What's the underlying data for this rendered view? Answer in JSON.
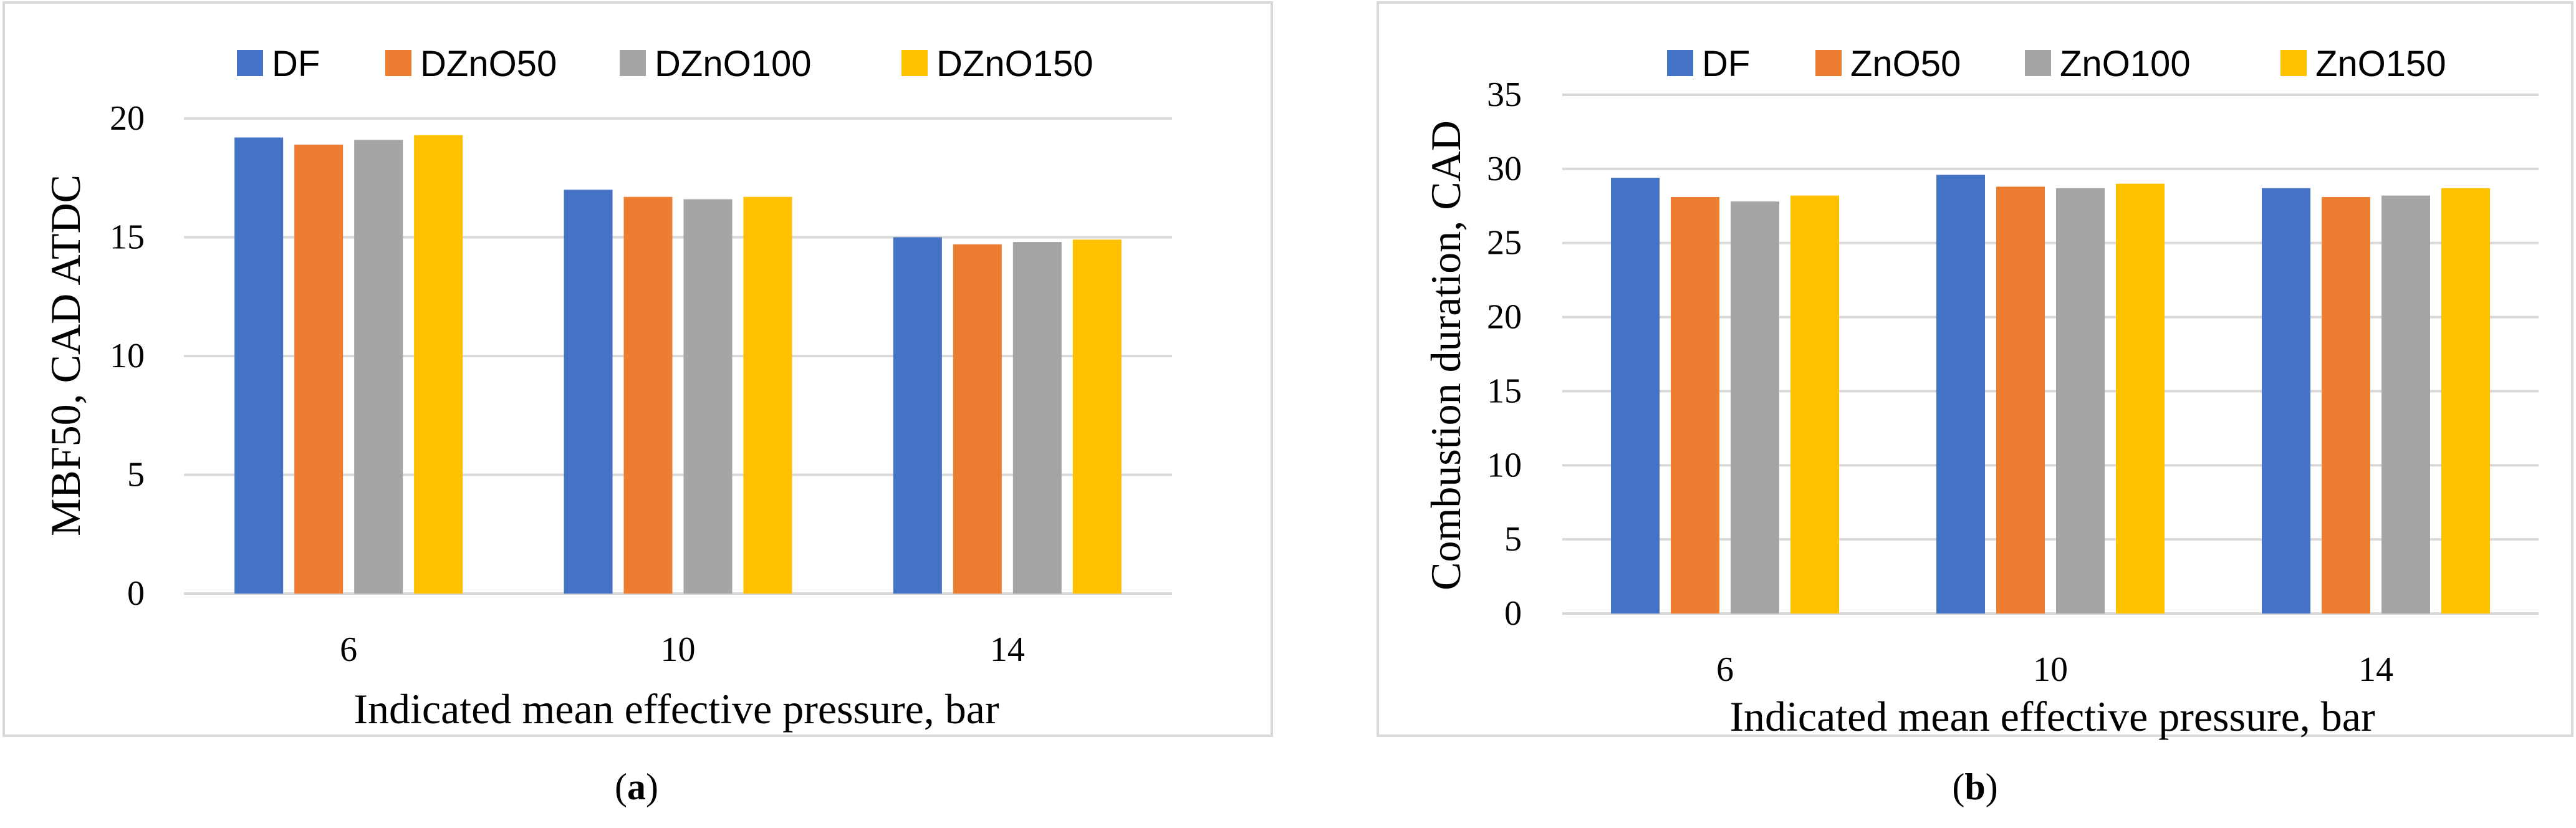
{
  "chart_data": [
    {
      "type": "bar",
      "panel_label": "a",
      "title": "",
      "categories": [
        "6",
        "10",
        "14"
      ],
      "series": [
        {
          "name": "DF",
          "values": [
            19.2,
            17.0,
            15.0
          ]
        },
        {
          "name": "DZnO50",
          "values": [
            18.9,
            16.7,
            14.7
          ]
        },
        {
          "name": "DZnO100",
          "values": [
            19.1,
            16.6,
            14.8
          ]
        },
        {
          "name": "DZnO150",
          "values": [
            19.3,
            16.7,
            14.9
          ]
        }
      ],
      "xlabel": "Indicated mean effective pressure, bar",
      "ylabel": "MBF50, CAD ATDC",
      "ylim": [
        0,
        20
      ],
      "yticks": [
        0,
        5,
        10,
        15,
        20
      ],
      "grid": true,
      "legend": "top"
    },
    {
      "type": "bar",
      "panel_label": "b",
      "title": "",
      "categories": [
        "6",
        "10",
        "14"
      ],
      "series": [
        {
          "name": "DF",
          "values": [
            29.4,
            29.6,
            28.7
          ]
        },
        {
          "name": "ZnO50",
          "values": [
            28.1,
            28.8,
            28.1
          ]
        },
        {
          "name": "ZnO100",
          "values": [
            27.8,
            28.7,
            28.2
          ]
        },
        {
          "name": "ZnO150",
          "values": [
            28.2,
            29.0,
            28.7
          ]
        }
      ],
      "xlabel": "Indicated mean effective pressure, bar",
      "ylabel": "Combustion duration, CAD",
      "ylim": [
        0,
        35
      ],
      "yticks": [
        0,
        5,
        10,
        15,
        20,
        25,
        30,
        35
      ],
      "grid": true,
      "legend": "top"
    }
  ],
  "colors": {
    "series": [
      "#4472C4",
      "#ED7D31",
      "#A5A5A5",
      "#FFC000"
    ],
    "grid": "#d9d9d9",
    "frame": "#d9d9d9"
  }
}
